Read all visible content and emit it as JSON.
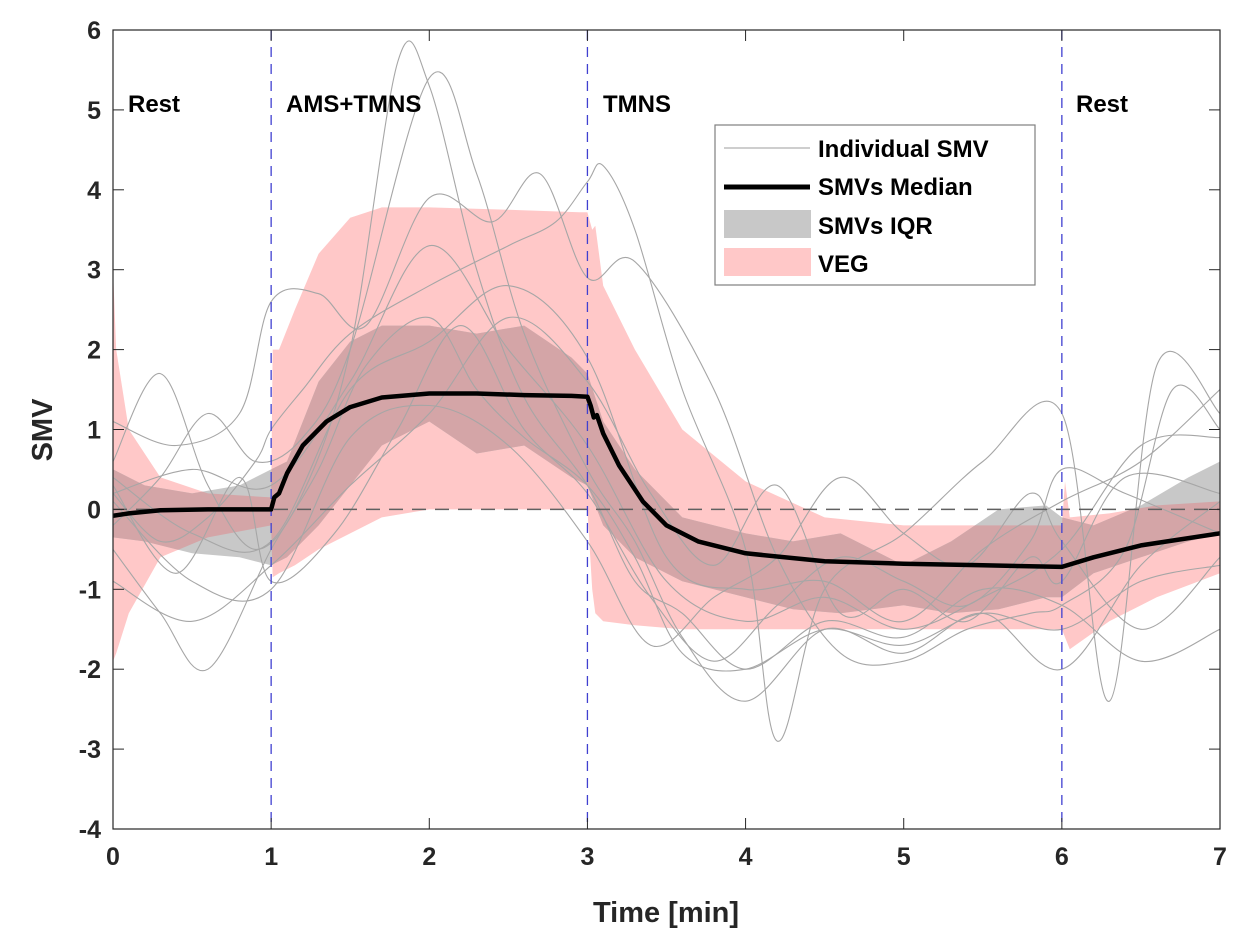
{
  "chart_data": {
    "type": "line",
    "title": "",
    "xlabel": "Time [min]",
    "ylabel": "SMV",
    "xlim": [
      0,
      7
    ],
    "ylim": [
      -4,
      6
    ],
    "xticks": [
      0,
      1,
      2,
      3,
      4,
      5,
      6,
      7
    ],
    "xtick_labels": [
      "0",
      "1",
      "2",
      "3",
      "4",
      "5",
      "6",
      "7"
    ],
    "yticks": [
      -4,
      -3,
      -2,
      -1,
      0,
      1,
      2,
      3,
      4,
      5,
      6
    ],
    "ytick_labels": [
      "-4",
      "-3",
      "-2",
      "-1",
      "0",
      "1",
      "2",
      "3",
      "4",
      "5",
      "6"
    ],
    "grid": false,
    "legend_position": "top-right",
    "colors": {
      "individual": "#a6a6a6",
      "median": "#000000",
      "iqr": "#c8c8c8",
      "veg": "#ffc8c8",
      "overlap": "#d4a5a7",
      "phase_line": "#4040d0",
      "zero_line": "#606060",
      "axis": "#262626"
    },
    "phases": [
      {
        "label": "Rest",
        "start": 0,
        "end": 1
      },
      {
        "label": "AMS+TMNS",
        "start": 1,
        "end": 3
      },
      {
        "label": "TMNS",
        "start": 3,
        "end": 6
      },
      {
        "label": "Rest",
        "start": 6,
        "end": 7
      }
    ],
    "phase_boundaries": [
      1,
      3,
      6
    ],
    "zero_reference": 0,
    "legend": [
      {
        "label": "Individual SMV",
        "kind": "thin-line",
        "series": "individual"
      },
      {
        "label": "SMVs Median",
        "kind": "thick-line",
        "series": "median"
      },
      {
        "label": "SMVs IQR",
        "kind": "patch",
        "series": "iqr"
      },
      {
        "label": "VEG",
        "kind": "patch",
        "series": "veg"
      }
    ],
    "series": [
      {
        "name": "SMVs Median",
        "x": [
          0,
          0.1,
          0.3,
          0.6,
          1.0,
          1.02,
          1.05,
          1.1,
          1.2,
          1.35,
          1.5,
          1.7,
          2.0,
          2.3,
          2.6,
          2.9,
          3.0,
          3.02,
          3.04,
          3.06,
          3.1,
          3.2,
          3.35,
          3.5,
          3.7,
          4.0,
          4.5,
          5.0,
          5.5,
          6.0,
          6.2,
          6.5,
          7.0
        ],
        "y": [
          -0.08,
          -0.05,
          -0.01,
          0.0,
          0.0,
          0.15,
          0.2,
          0.45,
          0.8,
          1.1,
          1.28,
          1.4,
          1.45,
          1.45,
          1.43,
          1.42,
          1.41,
          1.3,
          1.15,
          1.18,
          0.95,
          0.55,
          0.1,
          -0.2,
          -0.4,
          -0.55,
          -0.65,
          -0.68,
          -0.7,
          -0.72,
          -0.6,
          -0.45,
          -0.3
        ]
      },
      {
        "name": "SMVs IQR",
        "x": [
          0,
          0.2,
          0.5,
          0.8,
          1.0,
          1.1,
          1.3,
          1.5,
          1.7,
          2.0,
          2.3,
          2.6,
          2.9,
          3.0,
          3.1,
          3.3,
          3.6,
          4.0,
          4.3,
          4.6,
          5.0,
          5.3,
          5.6,
          5.9,
          6.0,
          6.2,
          6.5,
          6.8,
          7.0
        ],
        "upper": [
          0.5,
          0.3,
          0.2,
          0.3,
          0.5,
          0.6,
          1.6,
          2.1,
          2.3,
          2.3,
          2.2,
          2.3,
          1.9,
          1.7,
          1.1,
          0.5,
          -0.1,
          -0.3,
          -0.4,
          -0.3,
          -0.7,
          -0.4,
          0.0,
          0.05,
          -0.1,
          -0.2,
          0.05,
          0.4,
          0.6
        ],
        "lower": [
          -0.35,
          -0.4,
          -0.55,
          -0.6,
          -0.7,
          -0.6,
          -0.2,
          0.3,
          0.8,
          1.1,
          0.7,
          0.8,
          0.4,
          0.3,
          -0.2,
          -0.6,
          -0.9,
          -1.1,
          -1.25,
          -1.3,
          -1.2,
          -1.3,
          -1.25,
          -1.1,
          -1.1,
          -0.8,
          -0.6,
          -0.4,
          -0.3
        ]
      },
      {
        "name": "VEG",
        "x": [
          0,
          0.02,
          0.1,
          0.3,
          0.6,
          1.0,
          1.01,
          1.05,
          1.15,
          1.3,
          1.5,
          1.7,
          2.0,
          2.5,
          2.95,
          3.0,
          3.03,
          3.05,
          3.1,
          3.3,
          3.6,
          4.0,
          4.5,
          5.0,
          5.5,
          5.99,
          6.0,
          6.02,
          6.05,
          6.3,
          6.6,
          7.0
        ],
        "upper": [
          3.0,
          2.0,
          1.0,
          0.4,
          0.2,
          0.15,
          2.0,
          2.0,
          2.5,
          3.2,
          3.65,
          3.78,
          3.78,
          3.75,
          3.72,
          3.72,
          3.5,
          3.55,
          2.8,
          2.0,
          1.0,
          0.35,
          -0.1,
          -0.2,
          -0.2,
          -0.2,
          -0.2,
          0.35,
          -0.1,
          -0.05,
          0.05,
          0.1
        ],
        "lower": [
          -1.9,
          -1.8,
          -1.3,
          -0.6,
          -0.35,
          -0.2,
          -0.85,
          -0.8,
          -0.7,
          -0.5,
          -0.3,
          -0.1,
          0.0,
          0.0,
          0.0,
          0.0,
          -1.0,
          -1.3,
          -1.4,
          -1.45,
          -1.5,
          -1.5,
          -1.5,
          -1.5,
          -1.5,
          -1.5,
          -1.5,
          -1.6,
          -1.75,
          -1.4,
          -1.1,
          -0.8
        ]
      }
    ],
    "individual_series": [
      {
        "name": "Individual SMV 1",
        "x": [
          0,
          0.3,
          0.6,
          0.9,
          1.2,
          1.5,
          1.8,
          2.0,
          2.3,
          2.6,
          3.0,
          3.3,
          3.6,
          4.0,
          4.5,
          5.0,
          5.5,
          6.0,
          6.5,
          7.0
        ],
        "y": [
          0.6,
          1.7,
          0.3,
          -0.5,
          0.2,
          2.0,
          5.6,
          5.3,
          3.0,
          1.4,
          0.3,
          -0.9,
          -1.3,
          -2.0,
          -1.4,
          -1.6,
          -1.0,
          -1.2,
          -1.9,
          -1.5
        ]
      },
      {
        "name": "Individual SMV 2",
        "x": [
          0,
          0.3,
          0.6,
          0.9,
          1.2,
          1.5,
          2.0,
          2.3,
          2.6,
          3.0,
          3.3,
          3.6,
          4.0,
          4.5,
          5.0,
          5.5,
          6.0,
          6.5,
          7.0
        ],
        "y": [
          -0.2,
          0.4,
          1.2,
          0.6,
          0.9,
          2.0,
          5.4,
          4.2,
          2.2,
          0.5,
          -0.4,
          -1.6,
          -2.4,
          -1.5,
          -1.8,
          -1.3,
          -2.0,
          -0.7,
          0.1
        ]
      },
      {
        "name": "Individual SMV 3",
        "x": [
          0,
          0.3,
          0.6,
          0.9,
          1.0,
          1.2,
          1.5,
          2.0,
          2.5,
          2.8,
          3.0,
          3.1,
          3.3,
          3.6,
          4.0,
          4.2,
          4.5,
          5.0,
          5.5,
          6.0,
          6.3,
          6.6,
          7.0
        ],
        "y": [
          0.2,
          -0.4,
          -0.1,
          0.6,
          1.0,
          1.5,
          2.2,
          2.8,
          3.3,
          3.6,
          4.1,
          4.3,
          3.5,
          1.5,
          -0.5,
          -2.9,
          -1.0,
          -0.3,
          0.6,
          1.2,
          -2.4,
          1.8,
          1.2
        ]
      },
      {
        "name": "Individual SMV 4",
        "x": [
          0,
          0.4,
          0.8,
          1.0,
          1.3,
          1.6,
          2.0,
          2.4,
          2.7,
          3.0,
          3.3,
          3.8,
          4.2,
          4.6,
          5.0,
          5.4,
          5.8,
          6.0,
          6.4,
          6.7,
          7.0
        ],
        "y": [
          1.1,
          0.8,
          1.2,
          2.6,
          2.7,
          2.3,
          3.9,
          3.6,
          4.2,
          2.9,
          3.1,
          1.5,
          -0.6,
          -1.8,
          -1.9,
          -1.5,
          -1.3,
          -1.2,
          -0.5,
          1.5,
          1.0
        ]
      },
      {
        "name": "Individual SMV 5",
        "x": [
          0,
          0.3,
          0.6,
          1.0,
          1.3,
          1.6,
          2.0,
          2.3,
          2.6,
          3.0,
          3.3,
          3.6,
          4.0,
          4.5,
          5.0,
          5.5,
          6.0,
          6.5,
          7.0
        ],
        "y": [
          -0.5,
          -1.3,
          -2.0,
          -0.5,
          0.5,
          1.8,
          2.4,
          1.5,
          0.9,
          0.3,
          -0.6,
          -1.8,
          -2.0,
          -1.5,
          -1.7,
          -1.3,
          -1.5,
          -0.9,
          -0.7
        ]
      },
      {
        "name": "Individual SMV 6",
        "x": [
          0,
          0.4,
          0.8,
          1.0,
          1.4,
          1.8,
          2.2,
          2.6,
          3.0,
          3.4,
          3.8,
          4.2,
          4.6,
          5.0,
          5.4,
          5.8,
          6.0,
          6.4,
          7.0
        ],
        "y": [
          0.3,
          -0.8,
          0.4,
          -0.9,
          -0.3,
          1.0,
          2.3,
          1.0,
          0.2,
          -1.1,
          -1.9,
          -1.2,
          -0.6,
          -0.9,
          -1.2,
          -0.4,
          0.5,
          0.2,
          -0.3
        ]
      },
      {
        "name": "Individual SMV 7",
        "x": [
          0,
          0.5,
          1.0,
          1.5,
          2.0,
          2.5,
          3.0,
          3.4,
          3.8,
          4.2,
          4.6,
          5.0,
          5.4,
          5.8,
          6.0,
          6.4,
          7.0
        ],
        "y": [
          -0.9,
          -1.4,
          -0.7,
          0.3,
          1.2,
          2.4,
          1.6,
          0.2,
          -0.7,
          0.3,
          -1.3,
          -1.0,
          -1.4,
          -0.6,
          -0.9,
          0.4,
          0.2
        ]
      },
      {
        "name": "Individual SMV 8",
        "x": [
          0,
          0.5,
          1.0,
          1.5,
          2.0,
          2.5,
          3.0,
          3.4,
          3.8,
          4.2,
          4.6,
          5.0,
          5.4,
          5.8,
          6.0,
          6.5,
          7.0
        ],
        "y": [
          0.1,
          -0.9,
          -1.0,
          0.9,
          1.3,
          0.8,
          -0.4,
          -1.7,
          -1.1,
          -0.6,
          0.4,
          -0.3,
          -0.7,
          0.2,
          -0.4,
          -1.5,
          -0.6
        ]
      },
      {
        "name": "Individual SMV 9",
        "x": [
          0,
          0.5,
          1.0,
          1.5,
          2.0,
          2.5,
          3.0,
          3.5,
          4.0,
          4.5,
          5.0,
          5.5,
          6.0,
          6.5,
          7.0
        ],
        "y": [
          0.2,
          0.5,
          0.3,
          1.6,
          3.3,
          2.0,
          0.8,
          -0.9,
          -1.4,
          -1.1,
          -1.5,
          -1.1,
          -0.5,
          0.8,
          0.9
        ]
      },
      {
        "name": "Individual SMV 10",
        "x": [
          0,
          0.5,
          1.0,
          1.5,
          2.0,
          2.5,
          3.0,
          3.5,
          4.0,
          4.5,
          5.0,
          5.5,
          6.0,
          6.5,
          7.0
        ],
        "y": [
          0.4,
          -0.3,
          -0.4,
          1.5,
          2.1,
          2.8,
          1.9,
          -0.6,
          -1.0,
          -0.9,
          -1.4,
          -0.5,
          0.1,
          0.6,
          1.5
        ]
      }
    ]
  }
}
